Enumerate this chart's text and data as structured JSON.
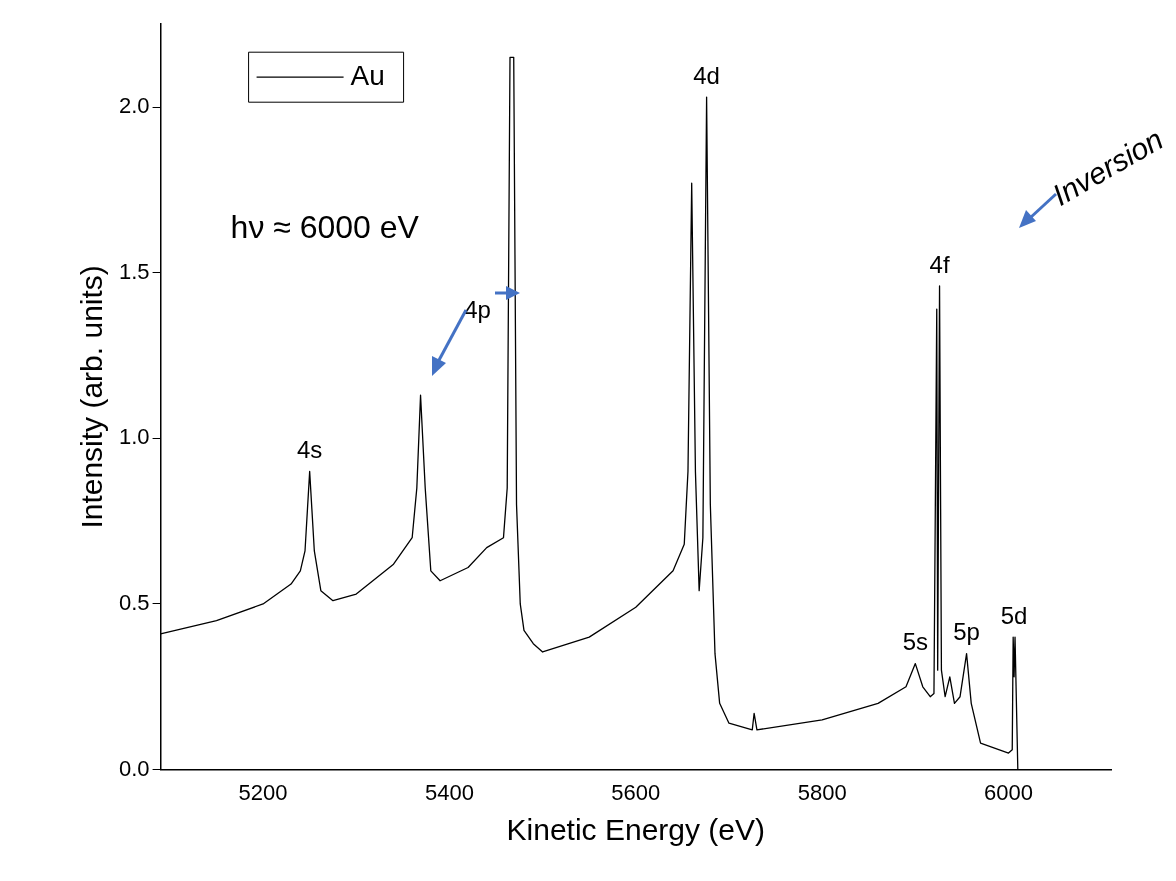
{
  "chart_data": {
    "type": "line",
    "xlabel": "Kinetic Energy (eV)",
    "ylabel": "Intensity (arb. units)",
    "xlim": [
      5090,
      6110
    ],
    "xticks": [
      5200,
      5400,
      5600,
      5800,
      6000
    ],
    "ylim": [
      0,
      2.25
    ],
    "yticks": [
      {
        "value": 0,
        "label": "0.0"
      },
      0.5,
      {
        "value": 1,
        "label": "1.0"
      },
      1.5,
      {
        "value": 2,
        "label": "2.0"
      }
    ],
    "grid": false,
    "legend": "top left",
    "marker": "none",
    "line_style": "solid",
    "series": [
      {
        "name": "Au",
        "color": "#000000",
        "x": [
          5090,
          5150,
          5200,
          5230,
          5240,
          5245,
          5250,
          5255,
          5262,
          5275,
          5300,
          5340,
          5360,
          5365,
          5369,
          5374,
          5380,
          5390,
          5420,
          5440,
          5458,
          5462,
          5465,
          5469,
          5472,
          5476,
          5480,
          5490,
          5500,
          5550,
          5600,
          5640,
          5652,
          5656,
          5660,
          5664,
          5668,
          5672,
          5676,
          5680,
          5685,
          5690,
          5700,
          5725,
          5727,
          5730,
          5800,
          5860,
          5890,
          5900,
          5908,
          5916,
          5920,
          5923,
          5924,
          5926,
          5928,
          5932,
          5937,
          5942,
          5948,
          5955,
          5960,
          5970,
          6000,
          6004,
          6005,
          6006,
          6007,
          6010
        ],
        "values": [
          0.41,
          0.45,
          0.5,
          0.56,
          0.6,
          0.66,
          0.9,
          0.66,
          0.54,
          0.51,
          0.53,
          0.62,
          0.7,
          0.85,
          1.13,
          0.85,
          0.6,
          0.57,
          0.61,
          0.67,
          0.7,
          0.85,
          2.15,
          2.15,
          0.8,
          0.5,
          0.42,
          0.38,
          0.355,
          0.4,
          0.49,
          0.6,
          0.68,
          0.9,
          1.77,
          0.9,
          0.54,
          0.7,
          2.03,
          0.8,
          0.35,
          0.2,
          0.14,
          0.12,
          0.17,
          0.12,
          0.15,
          0.2,
          0.25,
          0.32,
          0.25,
          0.22,
          0.23,
          1.39,
          0.3,
          1.46,
          0.3,
          0.22,
          0.28,
          0.2,
          0.22,
          0.35,
          0.2,
          0.08,
          0.05,
          0.06,
          0.4,
          0.28,
          0.4,
          0
        ]
      }
    ],
    "annotations": [
      "hν ≈ 6000 eV",
      "Inversion",
      "4p",
      {
        "text": "4s",
        "x": 5250,
        "y": 0.9
      },
      {
        "text": "4d",
        "x": 5676,
        "y": 2.03
      },
      {
        "text": "4f",
        "x": 5926,
        "y": 1.46
      },
      {
        "text": "5s",
        "x": 5900,
        "y": 0.32
      },
      {
        "text": "5p",
        "x": 5955,
        "y": 0.35
      },
      {
        "text": "5d",
        "x": 6006,
        "y": 0.4
      }
    ]
  }
}
